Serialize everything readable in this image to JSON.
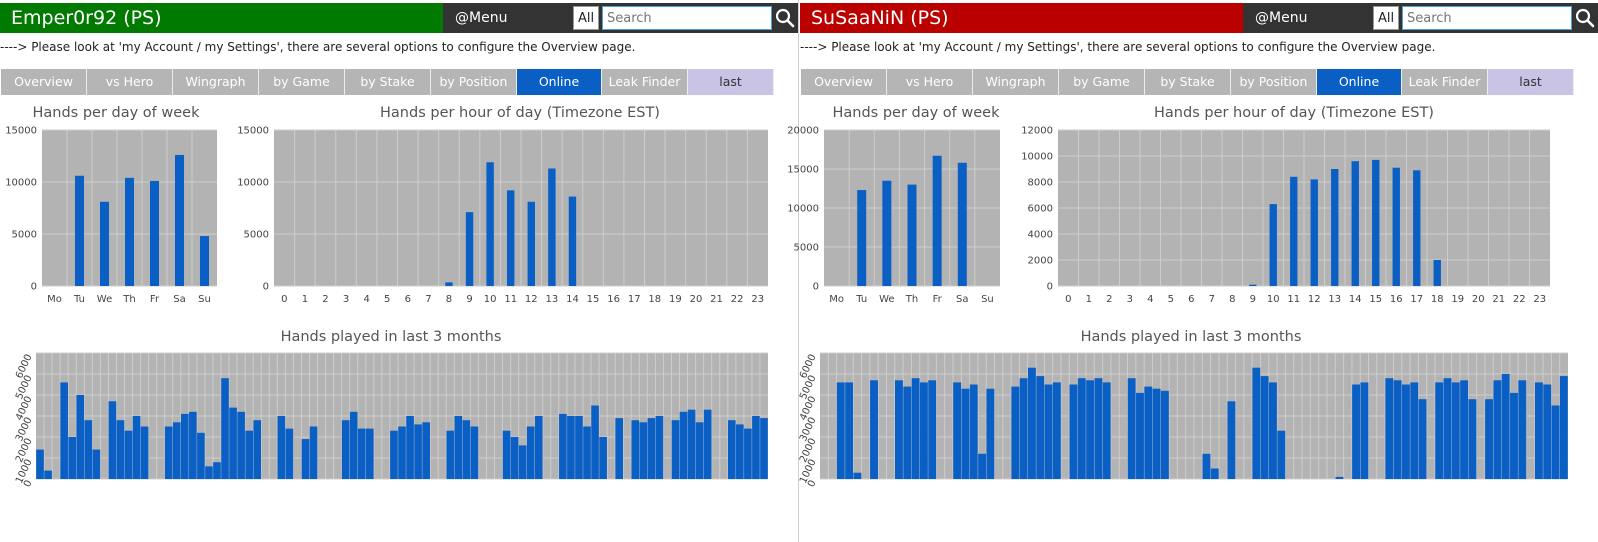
{
  "panels": [
    {
      "player_name": "Emper0r92 (PS)",
      "accent_color": "#007a00",
      "menu": {
        "label": "@Menu",
        "all_label": "All",
        "search_placeholder": "Search"
      },
      "notice": "----> Please look at 'my Account / my Settings', there are several options to configure the Overview page.",
      "tabs": [
        {
          "label": "Overview",
          "state": "normal"
        },
        {
          "label": "vs Hero",
          "state": "normal"
        },
        {
          "label": "Wingraph",
          "state": "normal"
        },
        {
          "label": "by Game",
          "state": "normal"
        },
        {
          "label": "by Stake",
          "state": "normal"
        },
        {
          "label": "by Position",
          "state": "normal"
        },
        {
          "label": "Online",
          "state": "active"
        },
        {
          "label": "Leak Finder",
          "state": "normal"
        },
        {
          "label": "last",
          "state": "last"
        }
      ]
    },
    {
      "player_name": "SuSaaNiN (PS)",
      "accent_color": "#bb0000",
      "menu": {
        "label": "@Menu",
        "all_label": "All",
        "search_placeholder": "Search"
      },
      "notice": "----> Please look at 'my Account / my Settings', there are several options to configure the Overview page.",
      "tabs": [
        {
          "label": "Overview",
          "state": "normal"
        },
        {
          "label": "vs Hero",
          "state": "normal"
        },
        {
          "label": "Wingraph",
          "state": "normal"
        },
        {
          "label": "by Game",
          "state": "normal"
        },
        {
          "label": "by Stake",
          "state": "normal"
        },
        {
          "label": "by Position",
          "state": "normal"
        },
        {
          "label": "Online",
          "state": "active"
        },
        {
          "label": "Leak Finder",
          "state": "normal"
        },
        {
          "label": "last",
          "state": "last"
        }
      ]
    }
  ],
  "chart_data": [
    {
      "type": "bar",
      "title": "Hands per day of week",
      "categories": [
        "Mo",
        "Tu",
        "We",
        "Th",
        "Fr",
        "Sa",
        "Su"
      ],
      "values": [
        0,
        10600,
        8100,
        10400,
        10100,
        12600,
        4800
      ],
      "yticks": [
        0,
        5000,
        10000,
        15000
      ],
      "ylim": [
        0,
        15000
      ],
      "grid": true
    },
    {
      "type": "bar",
      "title": "Hands per hour of day (Timezone EST)",
      "categories": [
        "0",
        "1",
        "2",
        "3",
        "4",
        "5",
        "6",
        "7",
        "8",
        "9",
        "10",
        "11",
        "12",
        "13",
        "14",
        "15",
        "16",
        "17",
        "18",
        "19",
        "20",
        "21",
        "22",
        "23"
      ],
      "values": [
        0,
        0,
        0,
        0,
        0,
        0,
        0,
        0,
        350,
        7100,
        11900,
        9200,
        8100,
        11300,
        8600,
        0,
        0,
        0,
        0,
        0,
        0,
        0,
        0,
        0
      ],
      "yticks": [
        0,
        5000,
        10000,
        15000
      ],
      "ylim": [
        0,
        15000
      ],
      "grid": true
    },
    {
      "type": "bar",
      "title": "Hands played in last 3 months",
      "x_label_note": "daily dates (rotated, overlapping)",
      "values": [
        1400,
        400,
        0,
        4600,
        2000,
        4000,
        2800,
        1400,
        0,
        3700,
        2800,
        2300,
        3000,
        2500,
        0,
        0,
        2500,
        2700,
        3100,
        3200,
        2200,
        600,
        800,
        4800,
        3400,
        3200,
        2300,
        2800,
        0,
        0,
        3000,
        2400,
        0,
        1900,
        2500,
        0,
        0,
        0,
        2800,
        3200,
        2400,
        2400,
        0,
        0,
        2300,
        2500,
        3000,
        2600,
        2700,
        0,
        0,
        2300,
        3000,
        2800,
        2500,
        0,
        0,
        0,
        2300,
        2000,
        1600,
        2500,
        3000,
        0,
        0,
        3100,
        3000,
        3000,
        2500,
        3500,
        2000,
        0,
        2900,
        0,
        2800,
        2700,
        2900,
        3000,
        0,
        2800,
        3200,
        3300,
        2700,
        3300,
        0,
        0,
        2800,
        2600,
        2400,
        3000,
        2900
      ],
      "yticks": [
        0,
        1000,
        2000,
        3000,
        4000,
        5000,
        6000
      ],
      "ylim": [
        0,
        6000
      ],
      "grid": true
    },
    {
      "type": "bar",
      "title": "Hands per day of week",
      "categories": [
        "Mo",
        "Tu",
        "We",
        "Th",
        "Fr",
        "Sa",
        "Su"
      ],
      "values": [
        0,
        12300,
        13500,
        13000,
        16700,
        15800,
        0
      ],
      "yticks": [
        0,
        5000,
        10000,
        15000,
        20000
      ],
      "ylim": [
        0,
        20000
      ],
      "grid": true
    },
    {
      "type": "bar",
      "title": "Hands per hour of day (Timezone EST)",
      "categories": [
        "0",
        "1",
        "2",
        "3",
        "4",
        "5",
        "6",
        "7",
        "8",
        "9",
        "10",
        "11",
        "12",
        "13",
        "14",
        "15",
        "16",
        "17",
        "18",
        "19",
        "20",
        "21",
        "22",
        "23"
      ],
      "values": [
        0,
        0,
        0,
        0,
        0,
        0,
        0,
        0,
        0,
        100,
        6300,
        8400,
        8200,
        9000,
        9600,
        9700,
        9100,
        8900,
        2000,
        0,
        0,
        0,
        0,
        0
      ],
      "yticks": [
        0,
        2000,
        4000,
        6000,
        8000,
        10000,
        12000
      ],
      "ylim": [
        0,
        12000
      ],
      "grid": true
    },
    {
      "type": "bar",
      "title": "Hands played in last 3 months",
      "x_label_note": "daily dates (rotated, overlapping)",
      "values": [
        0,
        0,
        4600,
        4600,
        300,
        0,
        4700,
        0,
        0,
        4700,
        4400,
        4800,
        4600,
        4700,
        0,
        0,
        4600,
        4300,
        4500,
        1200,
        4300,
        0,
        0,
        4400,
        4800,
        5300,
        4900,
        4500,
        4600,
        0,
        4500,
        4800,
        4700,
        4800,
        4600,
        0,
        0,
        4800,
        4100,
        4400,
        4300,
        4200,
        0,
        0,
        0,
        0,
        1200,
        500,
        0,
        3700,
        0,
        0,
        5300,
        4900,
        4600,
        2300,
        0,
        0,
        0,
        0,
        0,
        0,
        100,
        0,
        4500,
        4600,
        0,
        0,
        4800,
        4700,
        4500,
        4600,
        3800,
        0,
        4600,
        4800,
        4600,
        4700,
        3800,
        0,
        3800,
        4700,
        5000,
        4100,
        4700,
        0,
        4600,
        4500,
        3500,
        4900
      ],
      "yticks": [
        0,
        1000,
        2000,
        3000,
        4000,
        5000,
        6000
      ],
      "ylim": [
        0,
        6000
      ],
      "grid": true
    }
  ]
}
